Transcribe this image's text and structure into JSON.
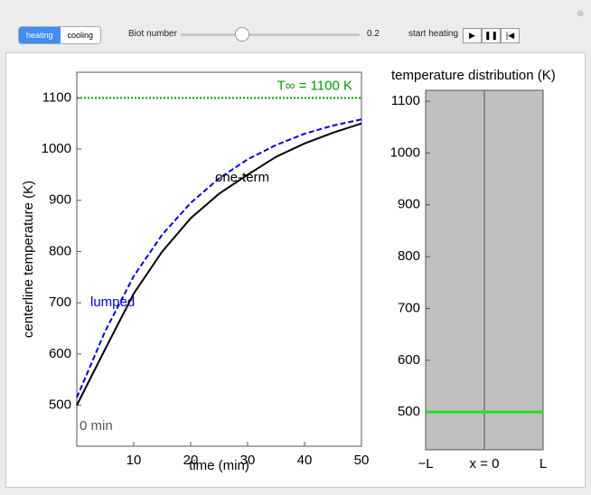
{
  "controls": {
    "mode_buttons": [
      "heating",
      "cooling"
    ],
    "selected_mode_index": 0,
    "biot_label": "Biot number",
    "biot_value": 0.2,
    "start_label": "start heating"
  },
  "chart_data": [
    {
      "type": "line",
      "xlabel": "time (min)",
      "ylabel": "centerline temperature (K)",
      "x": [
        0,
        5,
        10,
        15,
        20,
        25,
        30,
        35,
        40,
        45,
        50
      ],
      "xlim": [
        0,
        50
      ],
      "xticks": [
        10,
        20,
        30,
        40,
        50
      ],
      "ylim": [
        420,
        1150
      ],
      "yticks": [
        500,
        600,
        700,
        800,
        900,
        1000,
        1100
      ],
      "series": [
        {
          "name": "lumped",
          "color": "#0000dd",
          "dashed": true,
          "values": [
            515,
            645,
            752,
            833,
            895,
            943,
            980,
            1008,
            1030,
            1046,
            1058
          ]
        },
        {
          "name": "one-term",
          "color": "#000000",
          "dashed": false,
          "values": [
            500,
            610,
            718,
            800,
            865,
            913,
            950,
            985,
            1011,
            1032,
            1050
          ]
        }
      ],
      "reference_line": {
        "value": 1100,
        "label": "T∞ = 1100 K",
        "color": "#009900"
      },
      "annotation": "0 min"
    },
    {
      "type": "line",
      "title": "temperature distribution (K)",
      "x": [
        -1,
        1
      ],
      "xlim": [
        -1,
        1
      ],
      "xticks": [
        {
          "value": -1,
          "label": "−L"
        },
        {
          "value": 0,
          "label": "x = 0"
        },
        {
          "value": 1,
          "label": "L"
        }
      ],
      "xgrid": true,
      "ylim": [
        427,
        1121
      ],
      "yticks": [
        500,
        600,
        700,
        800,
        900,
        1000,
        1100
      ],
      "background": "#c0c0c0",
      "series": [
        {
          "color": "#22dd22",
          "dashed": false,
          "values": [
            500,
            500
          ]
        }
      ]
    }
  ]
}
